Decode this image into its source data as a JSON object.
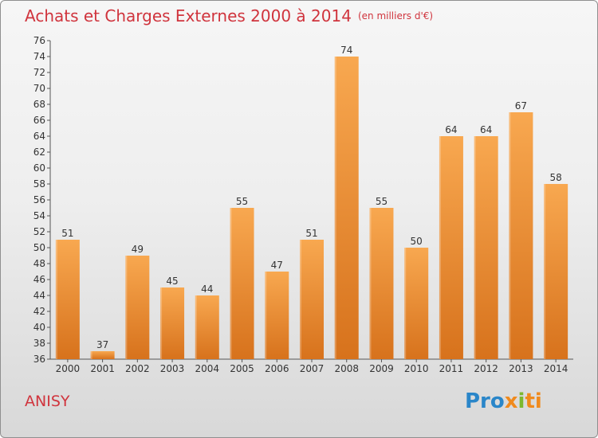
{
  "header": {
    "title": "Achats et Charges Externes 2000 à 2014",
    "subtitle": "(en milliers d'€)"
  },
  "footer": {
    "city": "ANISY",
    "logo_parts": [
      "Pro",
      "x",
      "i",
      "ti"
    ]
  },
  "colors": {
    "title": "#d0343d",
    "bar_top": "#f8a850",
    "bar_bottom": "#d7721c",
    "logo_blue": "#2a86c9",
    "logo_orange": "#f08a1d",
    "logo_green": "#7cb82f"
  },
  "chart_data": {
    "type": "bar",
    "title": "Achats et Charges Externes 2000 à 2014",
    "subtitle": "(en milliers d'€)",
    "categories": [
      "2000",
      "2001",
      "2002",
      "2003",
      "2004",
      "2005",
      "2006",
      "2007",
      "2008",
      "2009",
      "2010",
      "2011",
      "2012",
      "2013",
      "2014"
    ],
    "values": [
      51,
      37,
      49,
      45,
      44,
      55,
      47,
      51,
      74,
      55,
      50,
      64,
      64,
      67,
      58
    ],
    "ylim": [
      36,
      76
    ],
    "ytick_step": 2,
    "grid": false,
    "legend": "none"
  }
}
